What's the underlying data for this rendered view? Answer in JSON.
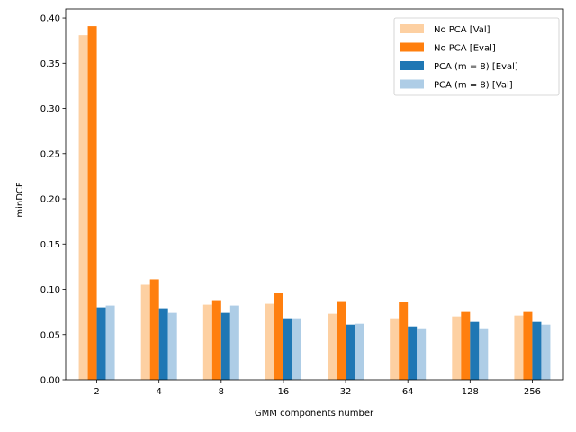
{
  "chart_data": {
    "type": "bar",
    "title": "",
    "xlabel": "GMM components number",
    "ylabel": "minDCF",
    "categories": [
      "2",
      "4",
      "8",
      "16",
      "32",
      "64",
      "128",
      "256"
    ],
    "ylim": [
      0,
      0.41
    ],
    "yticks": [
      "0.00",
      "0.05",
      "0.10",
      "0.15",
      "0.20",
      "0.25",
      "0.30",
      "0.35",
      "0.40"
    ],
    "grid": false,
    "legend_position": "top-right",
    "series": [
      {
        "name": "No PCA [Val]",
        "color": "#fdd0a2",
        "values": [
          0.381,
          0.105,
          0.083,
          0.084,
          0.073,
          0.068,
          0.07,
          0.071
        ]
      },
      {
        "name": "No PCA [Eval]",
        "color": "#ff7f0e",
        "values": [
          0.391,
          0.111,
          0.088,
          0.096,
          0.087,
          0.086,
          0.075,
          0.075
        ]
      },
      {
        "name": "PCA (m = 8) [Eval]",
        "color": "#1f77b4",
        "values": [
          0.08,
          0.079,
          0.074,
          0.068,
          0.061,
          0.059,
          0.064,
          0.064
        ]
      },
      {
        "name": "PCA (m = 8) [Val]",
        "color": "#aecde6",
        "values": [
          0.082,
          0.074,
          0.082,
          0.068,
          0.062,
          0.057,
          0.057,
          0.061
        ]
      }
    ]
  }
}
